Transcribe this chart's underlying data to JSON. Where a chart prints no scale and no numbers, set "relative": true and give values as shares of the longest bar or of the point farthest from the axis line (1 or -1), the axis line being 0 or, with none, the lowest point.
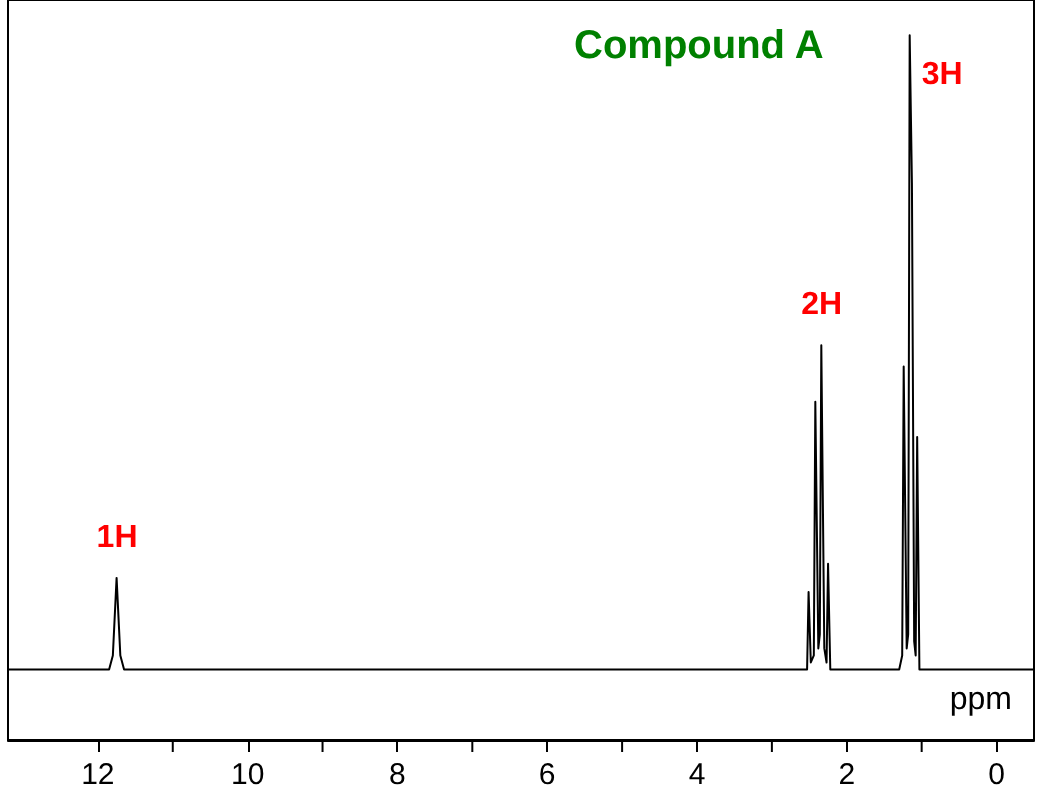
{
  "chart_data": {
    "type": "line",
    "title": "Compound A",
    "xlabel": "ppm",
    "relative": true,
    "grid": false,
    "marker": "none",
    "line_style": "solid",
    "tick_labels": "x",
    "xlim": [
      13.2,
      -0.5
    ],
    "xticks": [
      12,
      {
        "value": 11,
        "label": null
      },
      10,
      {
        "value": 9,
        "label": null
      },
      8,
      {
        "value": 7,
        "label": null
      },
      6,
      {
        "value": 5,
        "label": null
      },
      4,
      {
        "value": 3,
        "label": null
      },
      2,
      {
        "value": 1,
        "label": null
      },
      0
    ],
    "annotations": [
      {
        "text": "1H",
        "x": 11.75,
        "y": 0.23
      },
      {
        "text": "2H",
        "x": 2.34,
        "y": 0.56
      },
      {
        "text": "3H",
        "x": 1.16,
        "y": 1
      }
    ],
    "series": [
      {
        "color": "#000000",
        "x": [
          13.2,
          11.85,
          11.8,
          11.75,
          11.7,
          11.65,
          2.6,
          2.53,
          2.51,
          2.48,
          2.44,
          2.42,
          2.38,
          2.36,
          2.34,
          2.3,
          2.27,
          2.25,
          2.22,
          1.3,
          1.26,
          1.24,
          1.2,
          1.18,
          1.16,
          1.13,
          1.1,
          1.08,
          1.06,
          1.03,
          -0.5
        ],
        "values": [
          0.1,
          0.1,
          0.12,
          0.23,
          0.12,
          0.1,
          0.1,
          0.1,
          0.21,
          0.11,
          0.12,
          0.48,
          0.13,
          0.15,
          0.56,
          0.13,
          0.11,
          0.25,
          0.1,
          0.1,
          0.12,
          0.53,
          0.13,
          0.15,
          1,
          0.79,
          0.14,
          0.12,
          0.43,
          0.1,
          0.1
        ]
      }
    ]
  }
}
